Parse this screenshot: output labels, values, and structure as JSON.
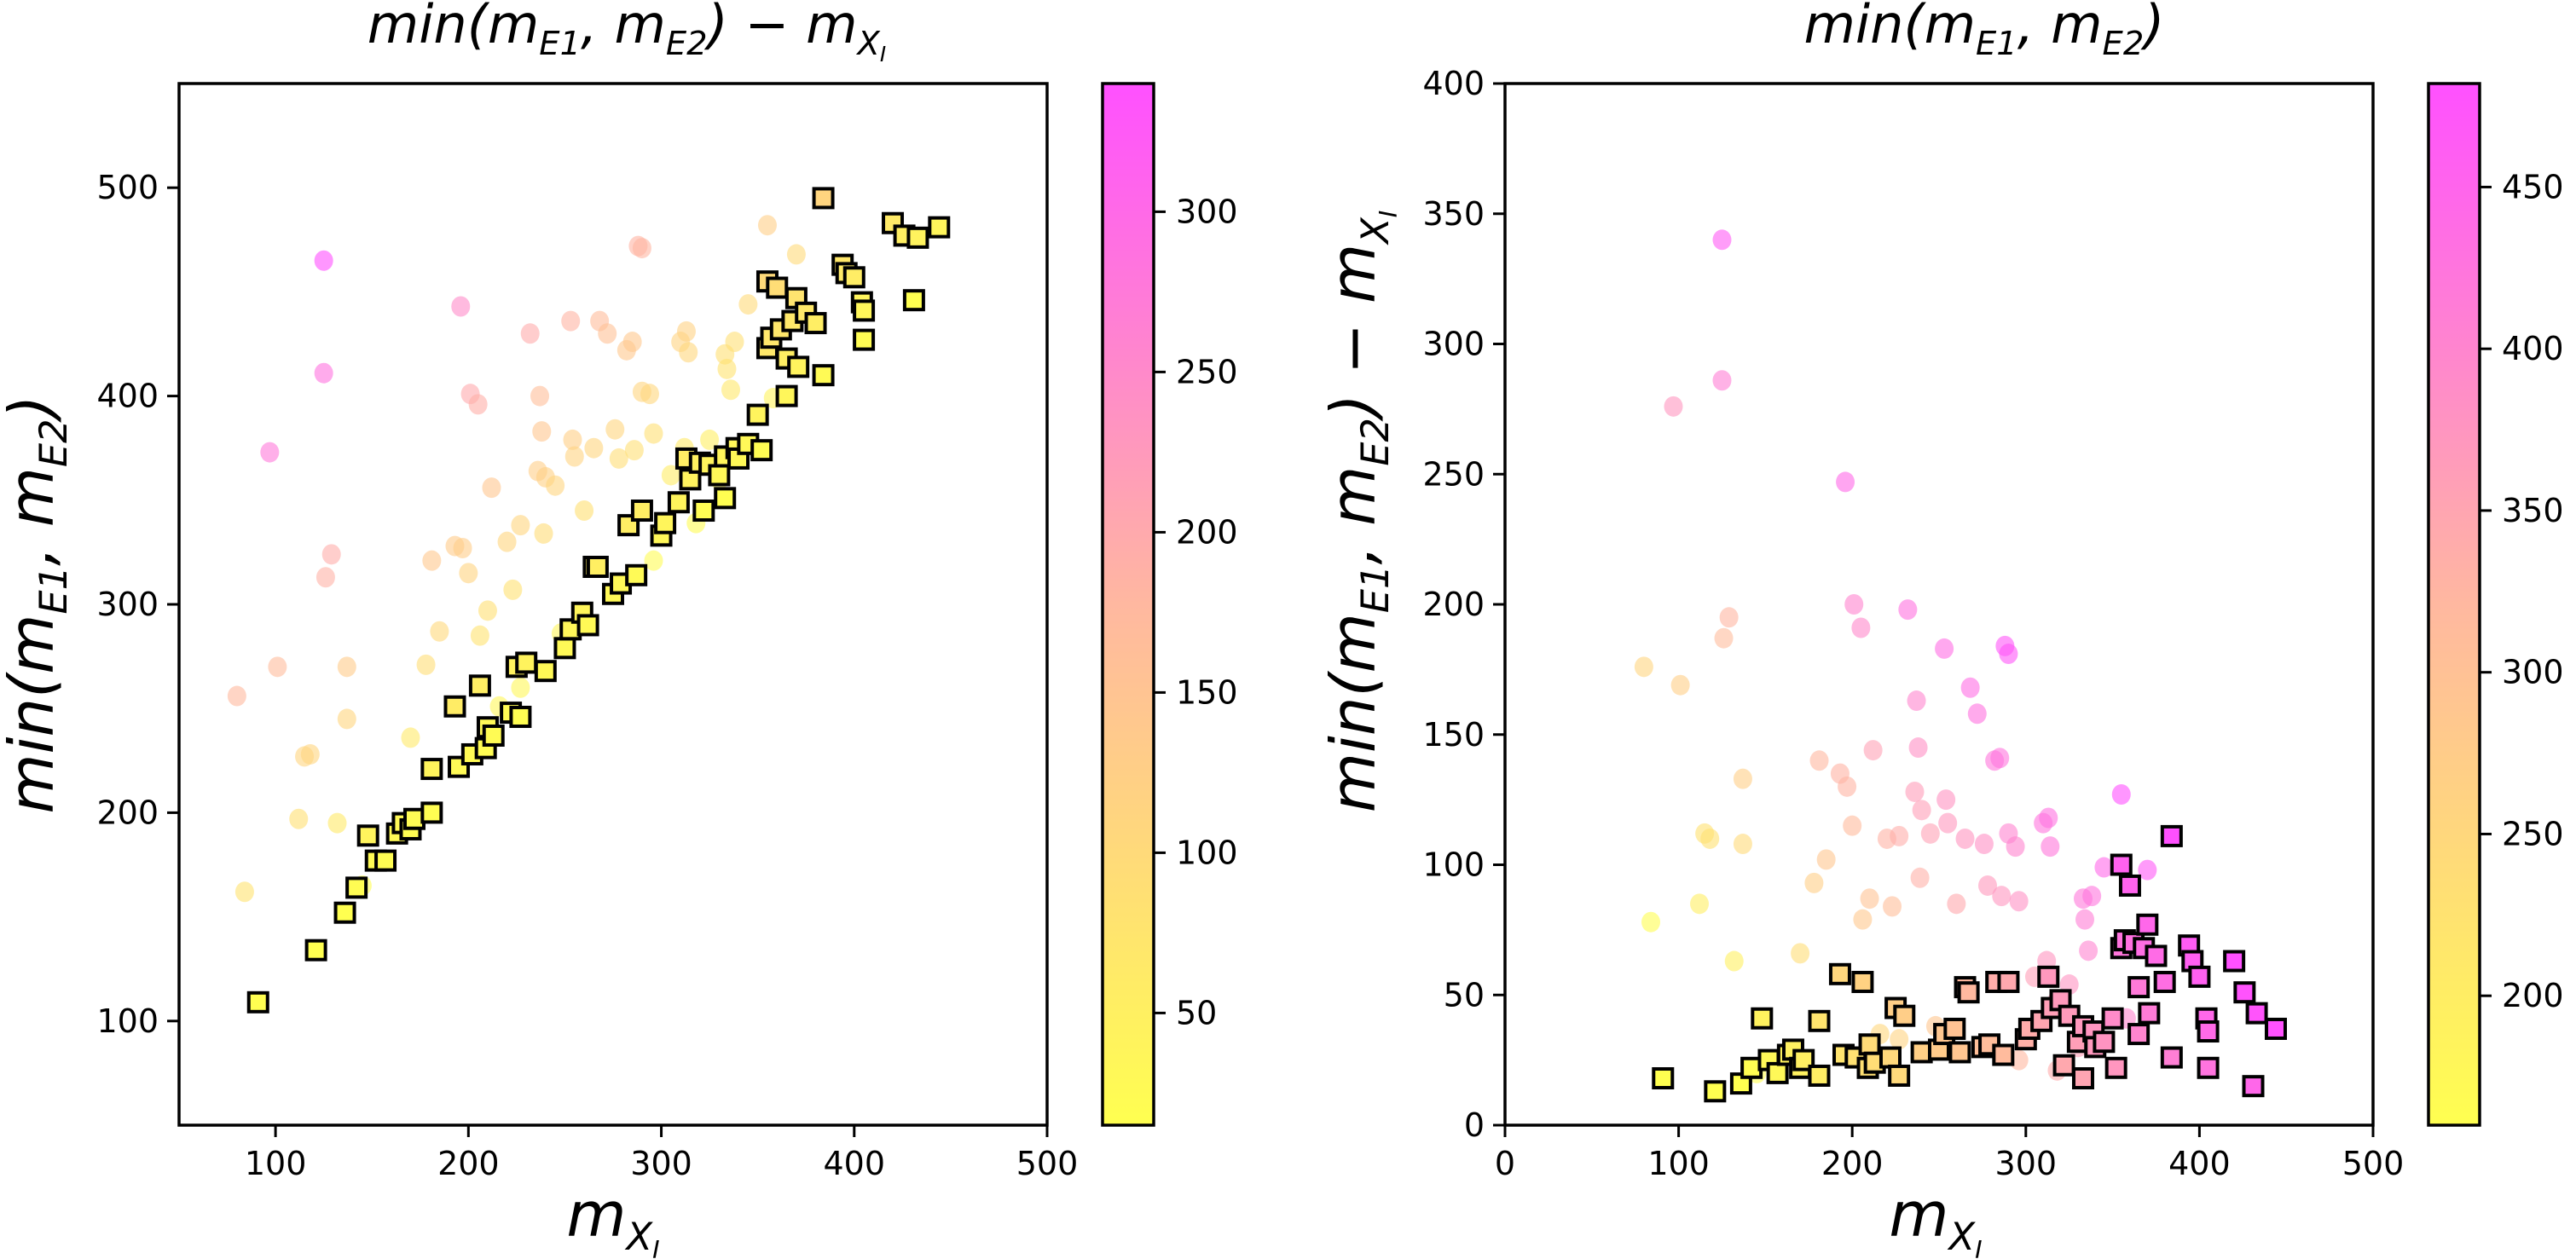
{
  "chart_data": [
    {
      "type": "scatter",
      "title": "min(m_E1, m_E2) - m_XI",
      "title_parts": {
        "main": "min(m",
        "s1": "E1",
        "mid": ", m",
        "s2": "E2",
        "tail": ") − m",
        "s3": "X",
        "s4": "I"
      },
      "xlabel": "m_XI",
      "ylabel": "min(m_E1, m_E2)",
      "xlim": [
        50,
        500
      ],
      "ylim": [
        50,
        550
      ],
      "xticks": [
        100,
        200,
        300,
        400,
        500
      ],
      "yticks": [
        100,
        200,
        300,
        400,
        500
      ],
      "y_mode": "sum",
      "color_by": "diff",
      "colorbar": {
        "cmap": "spring_r",
        "range": [
          15,
          340
        ],
        "ticks": [
          50,
          100,
          150,
          200,
          250,
          300
        ]
      },
      "grid": false,
      "legend": "none"
    },
    {
      "type": "scatter",
      "title": "min(m_E1, m_E2)",
      "title_parts": {
        "main": "min(m",
        "s1": "E1",
        "mid": ", m",
        "s2": "E2",
        "tail": ")"
      },
      "xlabel": "m_XI",
      "ylabel": "min(m_E1, m_E2) - m_XI",
      "xlim": [
        0,
        500
      ],
      "ylim": [
        0,
        400
      ],
      "xticks": [
        0,
        100,
        200,
        300,
        400,
        500
      ],
      "yticks": [
        0,
        50,
        100,
        150,
        200,
        250,
        300,
        350,
        400
      ],
      "y_mode": "diff",
      "color_by": "sum",
      "colorbar": {
        "cmap": "spring_r",
        "range": [
          160,
          482
        ],
        "ticks": [
          200,
          250,
          300,
          350,
          400,
          450
        ]
      },
      "grid": false,
      "legend": "none"
    }
  ],
  "points": {
    "description": "Each point: x = m_XI, d = min(m_E1,m_E2) - m_XI. Left panel plots (x, x+d) colored by d; right panel plots (x, d) colored by x+d.",
    "squares": [
      [
        91,
        18
      ],
      [
        121,
        13
      ],
      [
        136,
        16
      ],
      [
        142,
        22
      ],
      [
        148,
        41
      ],
      [
        152,
        25
      ],
      [
        157,
        20
      ],
      [
        163,
        27
      ],
      [
        166,
        29
      ],
      [
        170,
        22
      ],
      [
        172,
        25
      ],
      [
        181,
        19
      ],
      [
        181,
        40
      ],
      [
        193,
        58
      ],
      [
        195,
        27
      ],
      [
        202,
        26
      ],
      [
        206,
        55
      ],
      [
        209,
        22
      ],
      [
        210,
        31
      ],
      [
        213,
        24
      ],
      [
        222,
        26
      ],
      [
        225,
        45
      ],
      [
        227,
        19
      ],
      [
        230,
        42
      ],
      [
        240,
        28
      ],
      [
        250,
        29
      ],
      [
        253,
        35
      ],
      [
        259,
        37
      ],
      [
        262,
        28
      ],
      [
        265,
        53
      ],
      [
        267,
        51
      ],
      [
        275,
        30
      ],
      [
        279,
        31
      ],
      [
        283,
        55
      ],
      [
        287,
        27
      ],
      [
        290,
        55
      ],
      [
        300,
        33
      ],
      [
        302,
        37
      ],
      [
        309,
        40
      ],
      [
        313,
        57
      ],
      [
        315,
        45
      ],
      [
        320,
        48
      ],
      [
        322,
        23
      ],
      [
        325,
        42
      ],
      [
        330,
        32
      ],
      [
        333,
        38
      ],
      [
        333,
        18
      ],
      [
        339,
        36
      ],
      [
        340,
        30
      ],
      [
        345,
        32
      ],
      [
        350,
        41
      ],
      [
        352,
        22
      ],
      [
        355,
        100
      ],
      [
        355,
        68
      ],
      [
        357,
        71
      ],
      [
        360,
        92
      ],
      [
        362,
        70
      ],
      [
        365,
        53
      ],
      [
        365,
        35
      ],
      [
        368,
        68
      ],
      [
        370,
        77
      ],
      [
        371,
        43
      ],
      [
        375,
        65
      ],
      [
        380,
        55
      ],
      [
        384,
        111
      ],
      [
        384,
        26
      ],
      [
        394,
        69
      ],
      [
        396,
        63
      ],
      [
        400,
        57
      ],
      [
        404,
        41
      ],
      [
        405,
        36
      ],
      [
        405,
        22
      ],
      [
        420,
        63
      ],
      [
        426,
        51
      ],
      [
        433,
        43
      ],
      [
        431,
        15
      ],
      [
        444,
        37
      ]
    ],
    "circles": [
      [
        80,
        176
      ],
      [
        84,
        78
      ],
      [
        97,
        276
      ],
      [
        101,
        169
      ],
      [
        112,
        85
      ],
      [
        115,
        112
      ],
      [
        118,
        110
      ],
      [
        125,
        340
      ],
      [
        125,
        286
      ],
      [
        126,
        187
      ],
      [
        129,
        195
      ],
      [
        132,
        63
      ],
      [
        137,
        133
      ],
      [
        137,
        108
      ],
      [
        145,
        20
      ],
      [
        170,
        66
      ],
      [
        178,
        93
      ],
      [
        181,
        140
      ],
      [
        185,
        102
      ],
      [
        193,
        135
      ],
      [
        196,
        247
      ],
      [
        197,
        130
      ],
      [
        200,
        115
      ],
      [
        201,
        200
      ],
      [
        205,
        191
      ],
      [
        206,
        79
      ],
      [
        210,
        87
      ],
      [
        212,
        144
      ],
      [
        220,
        110
      ],
      [
        223,
        84
      ],
      [
        227,
        111
      ],
      [
        232,
        198
      ],
      [
        236,
        128
      ],
      [
        237,
        163
      ],
      [
        238,
        145
      ],
      [
        239,
        95
      ],
      [
        240,
        121
      ],
      [
        245,
        112
      ],
      [
        253,
        183
      ],
      [
        254,
        125
      ],
      [
        255,
        116
      ],
      [
        260,
        85
      ],
      [
        265,
        110
      ],
      [
        268,
        168
      ],
      [
        272,
        158
      ],
      [
        276,
        108
      ],
      [
        278,
        92
      ],
      [
        282,
        140
      ],
      [
        285,
        141
      ],
      [
        286,
        88
      ],
      [
        288,
        184
      ],
      [
        290,
        181
      ],
      [
        290,
        112
      ],
      [
        294,
        107
      ],
      [
        296,
        86
      ],
      [
        305,
        57
      ],
      [
        310,
        116
      ],
      [
        312,
        63
      ],
      [
        313,
        118
      ],
      [
        314,
        107
      ],
      [
        318,
        48
      ],
      [
        325,
        54
      ],
      [
        330,
        30
      ],
      [
        333,
        87
      ],
      [
        334,
        79
      ],
      [
        336,
        67
      ],
      [
        338,
        88
      ],
      [
        345,
        99
      ],
      [
        355,
        127
      ],
      [
        358,
        41
      ],
      [
        370,
        98
      ],
      [
        318,
        21
      ],
      [
        227,
        33
      ],
      [
        248,
        38
      ],
      [
        216,
        35
      ],
      [
        296,
        25
      ]
    ]
  },
  "styles": {
    "square_edge": "#000000",
    "circle_alpha": 0.6,
    "cmap_low": "#ffff50",
    "cmap_high": "#ff50ff"
  }
}
